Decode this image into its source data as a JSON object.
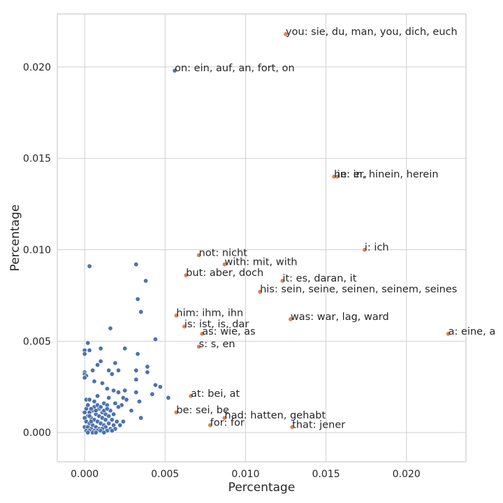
{
  "chart_data": {
    "type": "scatter",
    "title": "",
    "xlabel": "Percentage",
    "ylabel": "Percentage",
    "xlim": [
      -0.0017,
      0.0237
    ],
    "ylim": [
      -0.0016,
      0.0229
    ],
    "xticks": [
      0.0,
      0.005,
      0.01,
      0.015,
      0.02
    ],
    "yticks": [
      0.0,
      0.005,
      0.01,
      0.015,
      0.02
    ],
    "xtick_labels": [
      "0.000",
      "0.005",
      "0.010",
      "0.015",
      "0.020"
    ],
    "ytick_labels": [
      "0.000",
      "0.005",
      "0.010",
      "0.015",
      "0.020"
    ],
    "grid": true,
    "colors": {
      "background": "#ffffff",
      "grid": "#d0d0d0",
      "blue": "#4c72b0",
      "orange": "#dd8452"
    },
    "series": [
      {
        "color": "#4c72b0",
        "points": [
          [
            0.0056,
            0.0198
          ],
          [
            0.0003,
            0.0091
          ],
          [
            0.0032,
            0.0092
          ],
          [
            0.0038,
            0.0083
          ],
          [
            0.0033,
            0.0073
          ],
          [
            0.0035,
            0.0066
          ],
          [
            0.0016,
            0.0057
          ],
          [
            0.0044,
            0.0051
          ],
          [
            0.0002,
            0.0049
          ],
          [
            0.001,
            0.0046
          ],
          [
            0.0025,
            0.0046
          ],
          [
            0.0003,
            0.0045
          ],
          [
            0.0,
            0.0045
          ],
          [
            0.0033,
            0.0043
          ],
          [
            0.0,
            0.0043
          ],
          [
            0.001,
            0.0039
          ],
          [
            0.0019,
            0.0038
          ],
          [
            0.0008,
            0.0037
          ],
          [
            0.0039,
            0.0036
          ],
          [
            0.0005,
            0.0034
          ],
          [
            0.0015,
            0.0034
          ],
          [
            0.0021,
            0.0034
          ],
          [
            0.0032,
            0.0034
          ],
          [
            0.0039,
            0.0033
          ],
          [
            0.0,
            0.0033
          ],
          [
            0.0,
            0.0032
          ],
          [
            0.0017,
            0.0032
          ],
          [
            0.0001,
            0.0031
          ],
          [
            0.0,
            0.003
          ],
          [
            0.0006,
            0.0028
          ],
          [
            0.0032,
            0.0029
          ],
          [
            0.0011,
            0.0027
          ],
          [
            0.0044,
            0.0026
          ],
          [
            0.0047,
            0.0025
          ],
          [
            0.0014,
            0.0024
          ],
          [
            0.0025,
            0.0023
          ],
          [
            0.0018,
            0.0023
          ],
          [
            0.0032,
            0.0022
          ],
          [
            0.0021,
            0.0022
          ],
          [
            0.0042,
            0.0021
          ],
          [
            0.0008,
            0.002
          ],
          [
            0.0015,
            0.0019
          ],
          [
            0.0024,
            0.0019
          ],
          [
            0.0052,
            0.0019
          ],
          [
            0.0001,
            0.0018
          ],
          [
            0.0003,
            0.0018
          ],
          [
            0.0026,
            0.0018
          ],
          [
            0.0034,
            0.0017
          ],
          [
            0.0006,
            0.0017
          ],
          [
            0.0012,
            0.0016
          ],
          [
            0.0019,
            0.0016
          ],
          [
            0.0023,
            0.0015
          ],
          [
            0.0029,
            0.0012
          ],
          [
            0.0035,
            0.0008
          ],
          [
            0.0014,
            0.0015
          ],
          [
            0.0021,
            0.0014
          ],
          [
            0.0009,
            0.0013
          ],
          [
            0.0016,
            0.0012
          ],
          [
            0.0001,
            0.0013
          ],
          [
            0.0005,
            0.0012
          ],
          [
            0.0003,
            0.0011
          ],
          [
            0.0011,
            0.0011
          ],
          [
            0.0007,
            0.001
          ],
          [
            0.0013,
            0.001
          ],
          [
            0.0018,
            0.001
          ],
          [
            0.0002,
            0.0009
          ],
          [
            0.0009,
            0.0009
          ],
          [
            0.0015,
            0.0009
          ],
          [
            0.0,
            0.0008
          ],
          [
            0.0004,
            0.0008
          ],
          [
            0.0011,
            0.0008
          ],
          [
            0.0017,
            0.0007
          ],
          [
            0.0006,
            0.0007
          ],
          [
            0.0013,
            0.0007
          ],
          [
            0.002,
            0.0006
          ],
          [
            0.0001,
            0.0006
          ],
          [
            0.0008,
            0.0006
          ],
          [
            0.0024,
            0.0006
          ],
          [
            0.0003,
            0.0005
          ],
          [
            0.001,
            0.0005
          ],
          [
            0.0015,
            0.0005
          ],
          [
            0.0005,
            0.0004
          ],
          [
            0.0012,
            0.0004
          ],
          [
            0.0018,
            0.0004
          ],
          [
            0.0022,
            0.0004
          ],
          [
            0.0,
            0.0003
          ],
          [
            0.0007,
            0.0003
          ],
          [
            0.0013,
            0.0003
          ],
          [
            0.0002,
            0.0003
          ],
          [
            0.0009,
            0.0002
          ],
          [
            0.0016,
            0.0002
          ],
          [
            0.0004,
            0.0002
          ],
          [
            0.0011,
            0.0002
          ],
          [
            0.0006,
            0.0001
          ],
          [
            0.0001,
            0.0001
          ],
          [
            0.0014,
            0.0001
          ],
          [
            0.0008,
            0.0001
          ],
          [
            0.0003,
            0.0001
          ],
          [
            0.0019,
            0.0002
          ],
          [
            0.001,
            0.0001
          ],
          [
            0.0005,
            0.0
          ],
          [
            0.0012,
            0.0
          ],
          [
            0.0002,
            0.0
          ],
          [
            0.0007,
            0.0
          ],
          [
            0.0017,
            0.0001
          ],
          [
            0.0004,
            0.0006
          ],
          [
            0.0006,
            0.0014
          ],
          [
            0.0002,
            0.0015
          ],
          [
            0.0008,
            0.0015
          ],
          [
            0.0004,
            0.0013
          ],
          [
            0.001,
            0.0014
          ],
          [
            0.0,
            0.0011
          ],
          [
            0.0012,
            0.0012
          ],
          [
            0.0014,
            0.0013
          ],
          [
            0.0003,
            0.0009
          ],
          [
            0.0007,
            0.0012
          ]
        ]
      },
      {
        "color": "#dd8452",
        "points": [
          [
            0.0125,
            0.0218
          ],
          [
            0.0155,
            0.014
          ],
          [
            0.0157,
            0.014
          ],
          [
            0.0174,
            0.01
          ],
          [
            0.0071,
            0.0097
          ],
          [
            0.0087,
            0.0092
          ],
          [
            0.0063,
            0.0086
          ],
          [
            0.0123,
            0.0083
          ],
          [
            0.0109,
            0.0077
          ],
          [
            0.0057,
            0.0064
          ],
          [
            0.0128,
            0.0062
          ],
          [
            0.0062,
            0.0058
          ],
          [
            0.0073,
            0.0054
          ],
          [
            0.0226,
            0.0054
          ],
          [
            0.0071,
            0.0047
          ],
          [
            0.0066,
            0.002
          ],
          [
            0.0057,
            0.0011
          ],
          [
            0.0087,
            0.0008
          ],
          [
            0.0078,
            0.0004
          ],
          [
            0.0129,
            0.0003
          ]
        ]
      }
    ],
    "annotations": [
      {
        "text": "you: sie, du, man, you, dich, euch",
        "x": 0.0125,
        "y": 0.0218
      },
      {
        "text": "on: ein, auf, an, fort, on",
        "x": 0.0056,
        "y": 0.0198
      },
      {
        "text": "he: er,",
        "x": 0.0155,
        "y": 0.014
      },
      {
        "text": "in: in, hinein, herein",
        "x": 0.0157,
        "y": 0.014
      },
      {
        "text": "i: ich",
        "x": 0.0174,
        "y": 0.01
      },
      {
        "text": "not: nicht",
        "x": 0.0071,
        "y": 0.0097
      },
      {
        "text": "with: mit, with",
        "x": 0.0087,
        "y": 0.0092
      },
      {
        "text": "but: aber, doch",
        "x": 0.0063,
        "y": 0.0086
      },
      {
        "text": "it: es, daran, it",
        "x": 0.0123,
        "y": 0.0083
      },
      {
        "text": "his: sein, seine, seinen, seinem, seines",
        "x": 0.0109,
        "y": 0.0077
      },
      {
        "text": "him: ihm, ihn",
        "x": 0.0057,
        "y": 0.0064
      },
      {
        "text": "was: war, lag, ward",
        "x": 0.0128,
        "y": 0.0062
      },
      {
        "text": "is: ist, is, dar",
        "x": 0.0062,
        "y": 0.0058
      },
      {
        "text": "as: wie, as",
        "x": 0.0073,
        "y": 0.0054
      },
      {
        "text": "a: eine, a",
        "x": 0.0226,
        "y": 0.0054
      },
      {
        "text": "s: s, en",
        "x": 0.0071,
        "y": 0.0047
      },
      {
        "text": "at: bei, at",
        "x": 0.0066,
        "y": 0.002
      },
      {
        "text": "be: sei, be",
        "x": 0.0057,
        "y": 0.0011
      },
      {
        "text": "had: hatten, gehabt",
        "x": 0.0087,
        "y": 0.0008
      },
      {
        "text": "for: for",
        "x": 0.0078,
        "y": 0.0004
      },
      {
        "text": "that: jener",
        "x": 0.0129,
        "y": 0.0003
      }
    ]
  }
}
